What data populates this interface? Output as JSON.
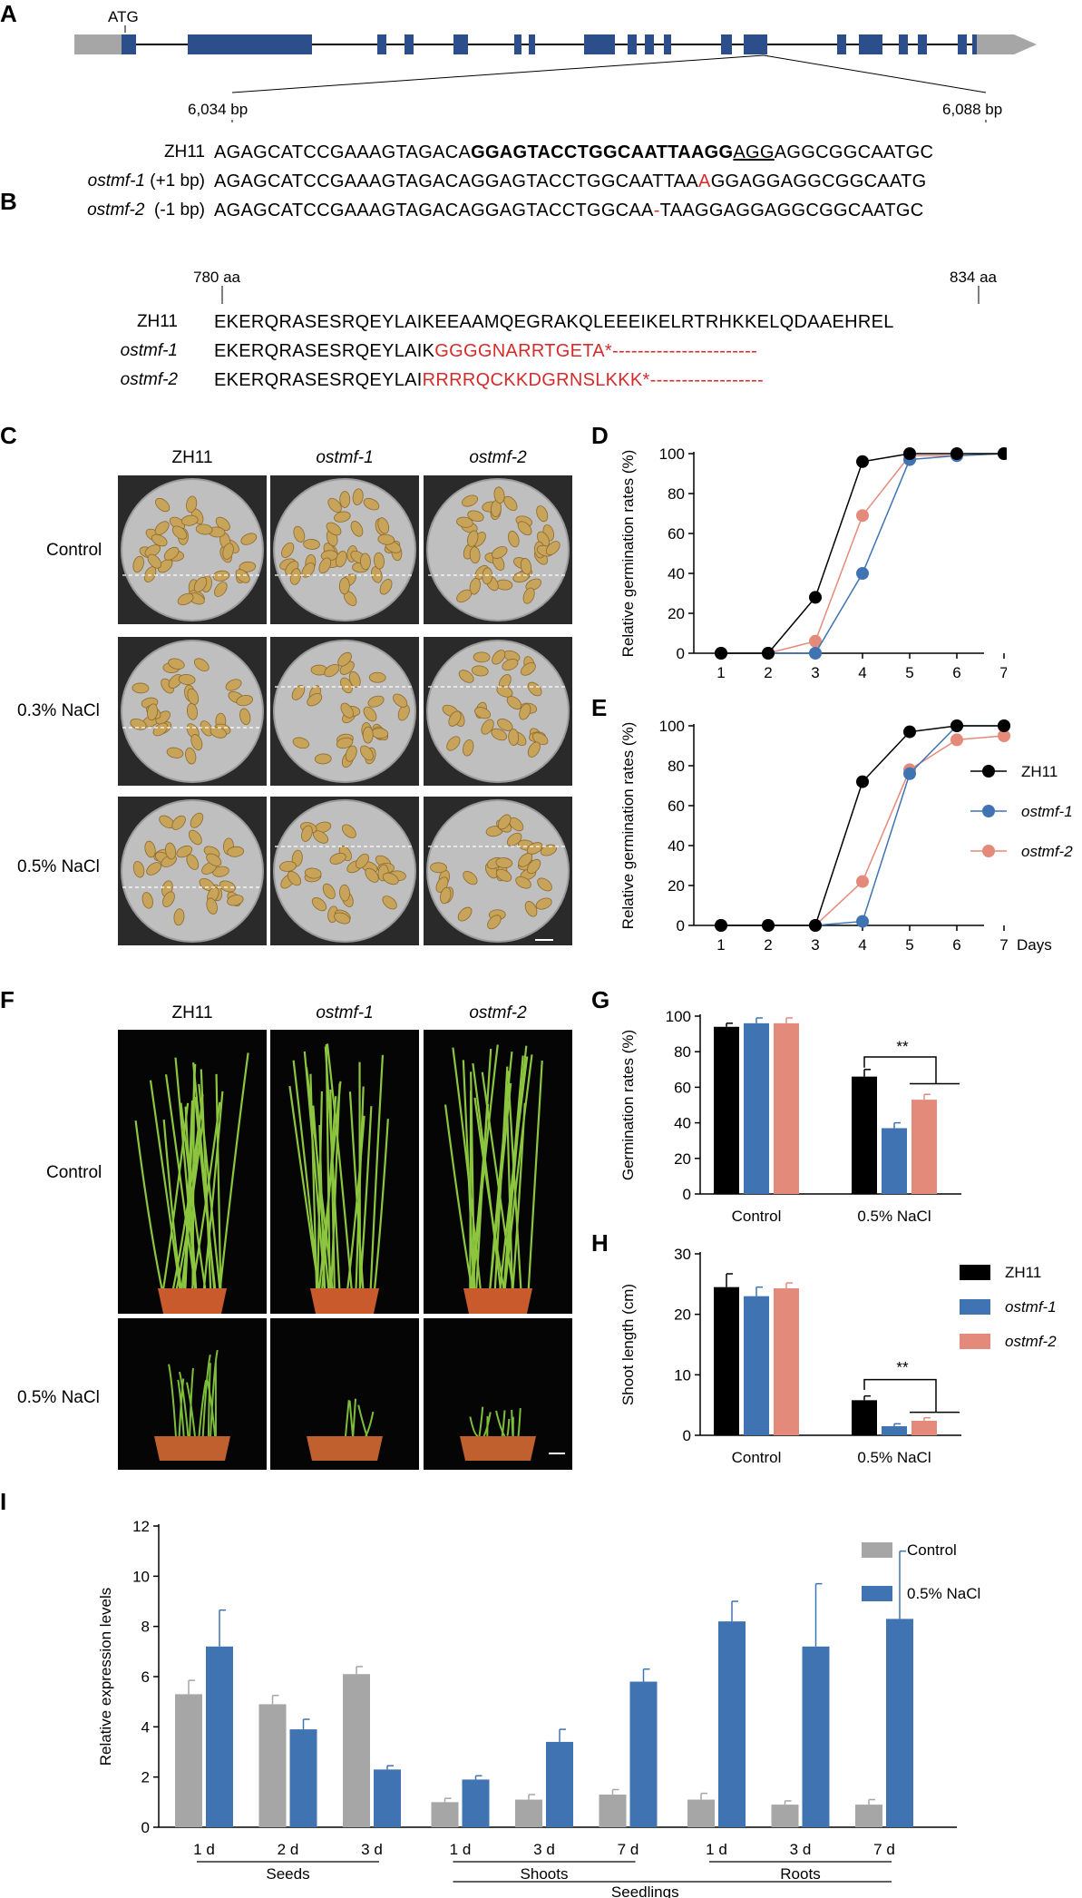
{
  "panels": {
    "A": {
      "letter": "A",
      "atg": "ATG",
      "start_bp": "6,034 bp",
      "end_bp": "6,088 bp",
      "rows": [
        {
          "label": "ZH11",
          "label_suffix": "",
          "parts": [
            {
              "t": "AGAGCATCCGAAAGTAGACA",
              "s": ""
            },
            {
              "t": "GGAGTACCTGGCAATTAAGG",
              "s": "bold"
            },
            {
              "t": "AGG",
              "s": "ul"
            },
            {
              "t": "AGGCGGCAATGC",
              "s": ""
            }
          ]
        },
        {
          "label": "ostmf-1",
          "label_suffix": " (+1 bp)",
          "parts": [
            {
              "t": "AGAGCATCCGAAAGTAGACAGGAGTACCTGGCAATTAA",
              "s": ""
            },
            {
              "t": "A",
              "s": "red"
            },
            {
              "t": "GGAGGAGGCGGCAATG",
              "s": ""
            }
          ]
        },
        {
          "label": "ostmf-2",
          "label_suffix": "  (-1 bp)",
          "parts": [
            {
              "t": "AGAGCATCCGAAAGTAGACAGGAGTACCTGGCAA",
              "s": ""
            },
            {
              "t": "-",
              "s": "red"
            },
            {
              "t": "TAAGGAGGAGGCGGCAATGC",
              "s": ""
            }
          ]
        }
      ]
    },
    "B": {
      "letter": "B",
      "start_aa": "780 aa",
      "end_aa": "834 aa",
      "rows": [
        {
          "label": "ZH11",
          "parts": [
            {
              "t": "EKERQRASESRQEYLAIKEEAAMQEGRAKQLEEEIKELRTRHKKELQDAAEHREL",
              "s": ""
            }
          ]
        },
        {
          "label": "ostmf-1",
          "parts": [
            {
              "t": "EKERQRASESRQEYLAIK",
              "s": ""
            },
            {
              "t": "GGGGNARRTGETA*",
              "s": "red"
            },
            {
              "t": "-----------------------",
              "s": "red"
            }
          ]
        },
        {
          "label": "ostmf-2",
          "parts": [
            {
              "t": "EKERQRASESRQEYLAI",
              "s": ""
            },
            {
              "t": "RRRRQCKKDGRNSLKKK*",
              "s": "red"
            },
            {
              "t": "------------------",
              "s": "red"
            }
          ]
        }
      ]
    },
    "C": {
      "letter": "C",
      "columns": [
        "ZH11",
        "ostmf-1",
        "ostmf-2"
      ],
      "rows": [
        "Control",
        "0.3% NaCl",
        "0.5% NaCl"
      ]
    },
    "F": {
      "letter": "F",
      "columns": [
        "ZH11",
        "ostmf-1",
        "ostmf-2"
      ],
      "rows": [
        "Control",
        "0.5% NaCl"
      ]
    },
    "D": {
      "letter": "D"
    },
    "E": {
      "letter": "E"
    },
    "G": {
      "letter": "G"
    },
    "H": {
      "letter": "H"
    },
    "I": {
      "letter": "I"
    }
  },
  "colors": {
    "zh11": "#000000",
    "ostmf1": "#3f73b1",
    "ostmf2": "#e48a7a",
    "control": "#a6a6a6",
    "nacl": "#3f73b1"
  },
  "chart_data": [
    {
      "id": "D",
      "type": "line",
      "x": [
        1,
        2,
        3,
        4,
        5,
        6,
        7
      ],
      "xlabel": "Days",
      "ylabel": "Relative germination rates (%)",
      "ylim": [
        0,
        100
      ],
      "yticks": [
        0,
        20,
        40,
        60,
        80,
        100
      ],
      "series": [
        {
          "name": "ZH11",
          "values": [
            0,
            0,
            28,
            96,
            100,
            100,
            100
          ]
        },
        {
          "name": "ostmf-1",
          "values": [
            0,
            0,
            0,
            40,
            97,
            99,
            100
          ]
        },
        {
          "name": "ostmf-2",
          "values": [
            0,
            0,
            6,
            69,
            99,
            99,
            100
          ]
        }
      ]
    },
    {
      "id": "E",
      "type": "line",
      "x": [
        1,
        2,
        3,
        4,
        5,
        6,
        7
      ],
      "xlabel": "Days",
      "ylabel": "Relative germination rates (%)",
      "ylim": [
        0,
        100
      ],
      "yticks": [
        0,
        20,
        40,
        60,
        80,
        100
      ],
      "legend": "right",
      "series": [
        {
          "name": "ZH11",
          "values": [
            0,
            0,
            0,
            72,
            97,
            100,
            100
          ]
        },
        {
          "name": "ostmf-1",
          "values": [
            0,
            0,
            0,
            2,
            76,
            100,
            100
          ]
        },
        {
          "name": "ostmf-2",
          "values": [
            0,
            0,
            0,
            22,
            78,
            93,
            95
          ]
        }
      ]
    },
    {
      "id": "G",
      "type": "bar",
      "categories": [
        "Control",
        "0.5% NaCl"
      ],
      "ylabel": "Germination rates (%)",
      "ylim": [
        0,
        100
      ],
      "yticks": [
        0,
        20,
        40,
        60,
        80,
        100
      ],
      "annotation": "**",
      "series": [
        {
          "name": "ZH11",
          "values": [
            94,
            66
          ],
          "errors": [
            2,
            4
          ]
        },
        {
          "name": "ostmf-1",
          "values": [
            96,
            37
          ],
          "errors": [
            3,
            3
          ]
        },
        {
          "name": "ostmf-2",
          "values": [
            96,
            53
          ],
          "errors": [
            3,
            3
          ]
        }
      ]
    },
    {
      "id": "H",
      "type": "bar",
      "categories": [
        "Control",
        "0.5% NaCl"
      ],
      "ylabel": "Shoot length (cm)",
      "ylim": [
        0,
        30
      ],
      "yticks": [
        0,
        10,
        20,
        30
      ],
      "legend": "right",
      "annotation": "**",
      "series": [
        {
          "name": "ZH11",
          "values": [
            24.5,
            5.8
          ],
          "errors": [
            2.2,
            0.7
          ]
        },
        {
          "name": "ostmf-1",
          "values": [
            23,
            1.5
          ],
          "errors": [
            1.5,
            0.4
          ]
        },
        {
          "name": "ostmf-2",
          "values": [
            24.3,
            2.4
          ],
          "errors": [
            0.9,
            0.5
          ]
        }
      ]
    },
    {
      "id": "I",
      "type": "bar",
      "categories": [
        "1 d",
        "2 d",
        "3 d",
        "1 d",
        "3 d",
        "7 d",
        "1 d",
        "3 d",
        "7 d"
      ],
      "ylabel": "Relative expression levels",
      "ylim": [
        0,
        12
      ],
      "yticks": [
        0,
        2,
        4,
        6,
        8,
        10,
        12
      ],
      "legend": "top-right",
      "groups": [
        {
          "label": "Seeds",
          "from": 0,
          "to": 2
        },
        {
          "label": "Shoots",
          "from": 3,
          "to": 5
        },
        {
          "label": "Roots",
          "from": 6,
          "to": 8
        }
      ],
      "supergroup": {
        "label": "Seedlings",
        "from": 3,
        "to": 8
      },
      "series": [
        {
          "name": "Control",
          "values": [
            5.3,
            4.9,
            6.1,
            1.0,
            1.1,
            1.3,
            1.1,
            0.9,
            0.9
          ],
          "errors": [
            0.55,
            0.35,
            0.3,
            0.15,
            0.2,
            0.2,
            0.25,
            0.15,
            0.2
          ]
        },
        {
          "name": "0.5% NaCl",
          "values": [
            7.2,
            3.9,
            2.3,
            1.9,
            3.4,
            5.8,
            8.2,
            7.2,
            8.3
          ],
          "errors": [
            1.45,
            0.4,
            0.15,
            0.15,
            0.5,
            0.5,
            0.8,
            2.5,
            2.7
          ]
        }
      ]
    }
  ]
}
